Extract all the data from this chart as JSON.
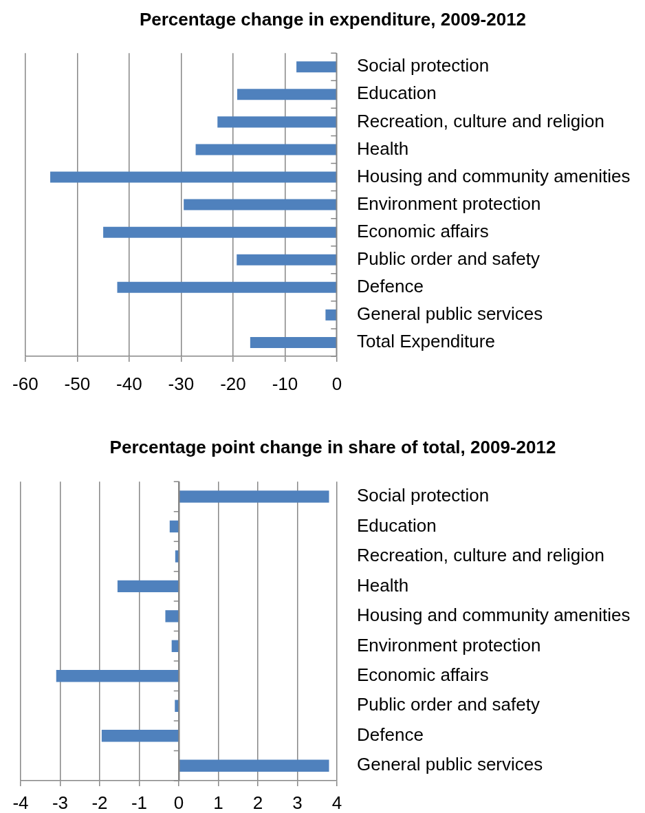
{
  "chart_data": [
    {
      "type": "bar",
      "orientation": "horizontal",
      "title": "Percentage change in expenditure, 2009-2012",
      "categories": [
        "Social protection",
        "Education",
        "Recreation, culture and religion",
        "Health",
        "Housing and community amenities",
        "Environment protection",
        "Economic affairs",
        "Public order and safety",
        "Defence",
        "General public services",
        "Total Expenditure"
      ],
      "values": [
        -7.8,
        -19.2,
        -23.0,
        -27.2,
        -55.2,
        -29.5,
        -45.0,
        -19.3,
        -42.3,
        -2.2,
        -16.7
      ],
      "color": "#4f81bd",
      "xlim": [
        -60,
        0
      ],
      "xticks": [
        -60,
        -50,
        -40,
        -30,
        -20,
        -10,
        0
      ],
      "grid": "x"
    },
    {
      "type": "bar",
      "orientation": "horizontal",
      "title": "Percentage point change in share of total, 2009-2012",
      "categories": [
        "Social protection",
        "Education",
        "Recreation, culture and religion",
        "Health",
        "Housing and community amenities",
        "Environment protection",
        "Economic affairs",
        "Public order and safety",
        "Defence",
        "General public services"
      ],
      "values": [
        3.8,
        -0.23,
        -0.09,
        -1.55,
        -0.34,
        -0.18,
        -3.1,
        -0.1,
        -1.95,
        3.8
      ],
      "color": "#4f81bd",
      "xlim": [
        -4,
        4
      ],
      "xticks": [
        -4,
        -3,
        -2,
        -1,
        0,
        1,
        2,
        3,
        4
      ],
      "grid": "x"
    }
  ]
}
